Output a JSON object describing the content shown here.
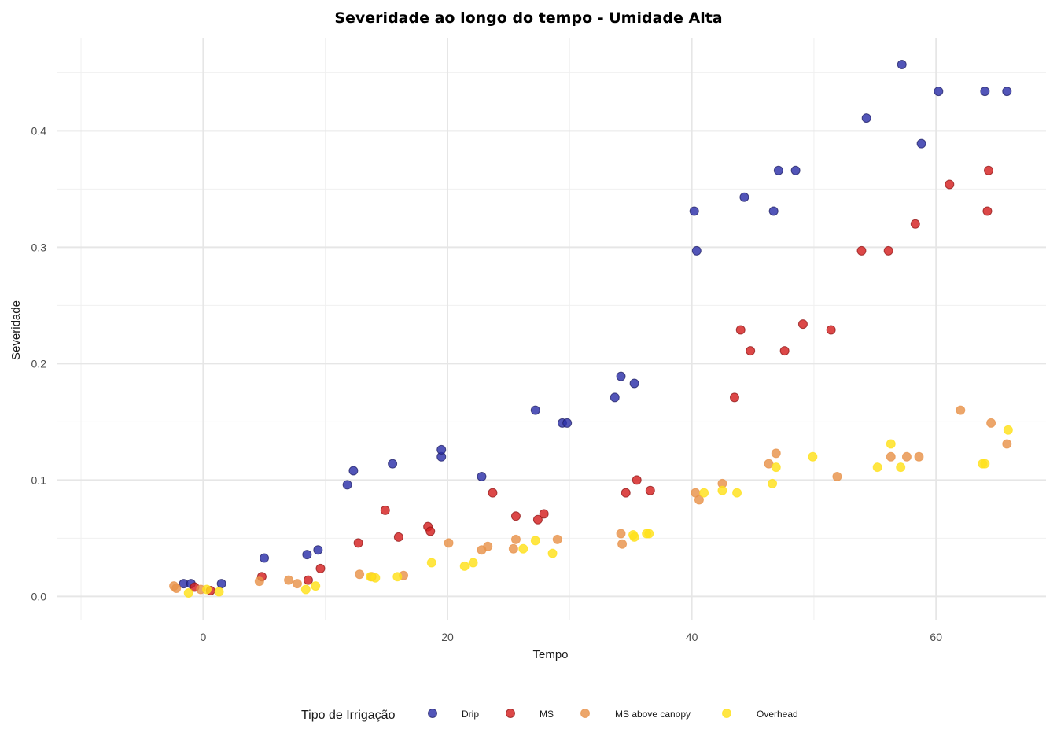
{
  "chart_data": {
    "type": "scatter",
    "title": "Severidade ao longo do tempo - Umidade Alta",
    "xlabel": "Tempo",
    "ylabel": "Severidade",
    "xlim": [
      -12,
      69
    ],
    "ylim": [
      -0.02,
      0.48
    ],
    "x_ticks": [
      0,
      20,
      40,
      60
    ],
    "y_ticks": [
      0.0,
      0.1,
      0.2,
      0.3,
      0.4
    ],
    "y_tick_labels": [
      "0.0",
      "0.1",
      "0.2",
      "0.3",
      "0.4"
    ],
    "grid": true,
    "legend_title": "Tipo de Irrigação",
    "legend_position": "bottom",
    "series": [
      {
        "name": "Drip",
        "color": "#2c2fa8",
        "points": [
          [
            -1.6,
            0.011
          ],
          [
            -1.0,
            0.011
          ],
          [
            1.5,
            0.011
          ],
          [
            5.0,
            0.033
          ],
          [
            8.5,
            0.036
          ],
          [
            9.4,
            0.04
          ],
          [
            11.8,
            0.096
          ],
          [
            12.3,
            0.108
          ],
          [
            15.5,
            0.114
          ],
          [
            19.5,
            0.12
          ],
          [
            19.5,
            0.126
          ],
          [
            22.8,
            0.103
          ],
          [
            27.2,
            0.16
          ],
          [
            29.4,
            0.149
          ],
          [
            29.8,
            0.149
          ],
          [
            33.7,
            0.171
          ],
          [
            34.2,
            0.189
          ],
          [
            35.3,
            0.183
          ],
          [
            40.2,
            0.331
          ],
          [
            40.4,
            0.297
          ],
          [
            44.3,
            0.343
          ],
          [
            46.7,
            0.331
          ],
          [
            47.1,
            0.366
          ],
          [
            48.5,
            0.366
          ],
          [
            54.3,
            0.411
          ],
          [
            57.2,
            0.457
          ],
          [
            58.8,
            0.389
          ],
          [
            60.2,
            0.434
          ],
          [
            64.0,
            0.434
          ],
          [
            65.8,
            0.434
          ]
        ]
      },
      {
        "name": "MS",
        "color": "#d42020",
        "points": [
          [
            -0.7,
            0.008
          ],
          [
            0.6,
            0.005
          ],
          [
            4.8,
            0.017
          ],
          [
            8.6,
            0.014
          ],
          [
            9.6,
            0.024
          ],
          [
            12.7,
            0.046
          ],
          [
            14.9,
            0.074
          ],
          [
            16.0,
            0.051
          ],
          [
            18.4,
            0.06
          ],
          [
            18.6,
            0.056
          ],
          [
            23.7,
            0.089
          ],
          [
            25.6,
            0.069
          ],
          [
            27.4,
            0.066
          ],
          [
            27.9,
            0.071
          ],
          [
            34.6,
            0.089
          ],
          [
            35.5,
            0.1
          ],
          [
            36.6,
            0.091
          ],
          [
            43.5,
            0.171
          ],
          [
            44.0,
            0.229
          ],
          [
            44.8,
            0.211
          ],
          [
            47.6,
            0.211
          ],
          [
            49.1,
            0.234
          ],
          [
            51.4,
            0.229
          ],
          [
            53.9,
            0.297
          ],
          [
            56.1,
            0.297
          ],
          [
            58.3,
            0.32
          ],
          [
            61.1,
            0.354
          ],
          [
            64.2,
            0.331
          ],
          [
            64.3,
            0.366
          ]
        ]
      },
      {
        "name": "MS above canopy",
        "color": "#e8934a",
        "points": [
          [
            -2.4,
            0.009
          ],
          [
            -2.2,
            0.007
          ],
          [
            -0.2,
            0.006
          ],
          [
            4.6,
            0.013
          ],
          [
            7.0,
            0.014
          ],
          [
            7.7,
            0.011
          ],
          [
            12.8,
            0.019
          ],
          [
            13.8,
            0.017
          ],
          [
            16.4,
            0.018
          ],
          [
            20.1,
            0.046
          ],
          [
            22.8,
            0.04
          ],
          [
            23.3,
            0.043
          ],
          [
            25.4,
            0.041
          ],
          [
            25.6,
            0.049
          ],
          [
            29.0,
            0.049
          ],
          [
            34.2,
            0.054
          ],
          [
            34.3,
            0.045
          ],
          [
            40.3,
            0.089
          ],
          [
            40.6,
            0.083
          ],
          [
            42.5,
            0.097
          ],
          [
            46.3,
            0.114
          ],
          [
            46.9,
            0.123
          ],
          [
            51.9,
            0.103
          ],
          [
            56.3,
            0.12
          ],
          [
            57.6,
            0.12
          ],
          [
            58.6,
            0.12
          ],
          [
            62.0,
            0.16
          ],
          [
            64.5,
            0.149
          ],
          [
            65.8,
            0.131
          ]
        ]
      },
      {
        "name": "Overhead",
        "color": "#ffe11a",
        "points": [
          [
            -1.2,
            0.003
          ],
          [
            0.3,
            0.006
          ],
          [
            1.3,
            0.004
          ],
          [
            8.4,
            0.006
          ],
          [
            9.2,
            0.009
          ],
          [
            13.7,
            0.017
          ],
          [
            14.1,
            0.016
          ],
          [
            15.9,
            0.017
          ],
          [
            18.7,
            0.029
          ],
          [
            21.4,
            0.026
          ],
          [
            22.1,
            0.029
          ],
          [
            26.2,
            0.041
          ],
          [
            27.2,
            0.048
          ],
          [
            28.6,
            0.037
          ],
          [
            35.2,
            0.053
          ],
          [
            35.3,
            0.051
          ],
          [
            36.3,
            0.054
          ],
          [
            36.5,
            0.054
          ],
          [
            41.0,
            0.089
          ],
          [
            42.5,
            0.091
          ],
          [
            43.7,
            0.089
          ],
          [
            46.6,
            0.097
          ],
          [
            46.9,
            0.111
          ],
          [
            49.9,
            0.12
          ],
          [
            55.2,
            0.111
          ],
          [
            56.3,
            0.131
          ],
          [
            57.1,
            0.111
          ],
          [
            63.8,
            0.114
          ],
          [
            64.0,
            0.114
          ],
          [
            65.9,
            0.143
          ]
        ]
      }
    ]
  }
}
